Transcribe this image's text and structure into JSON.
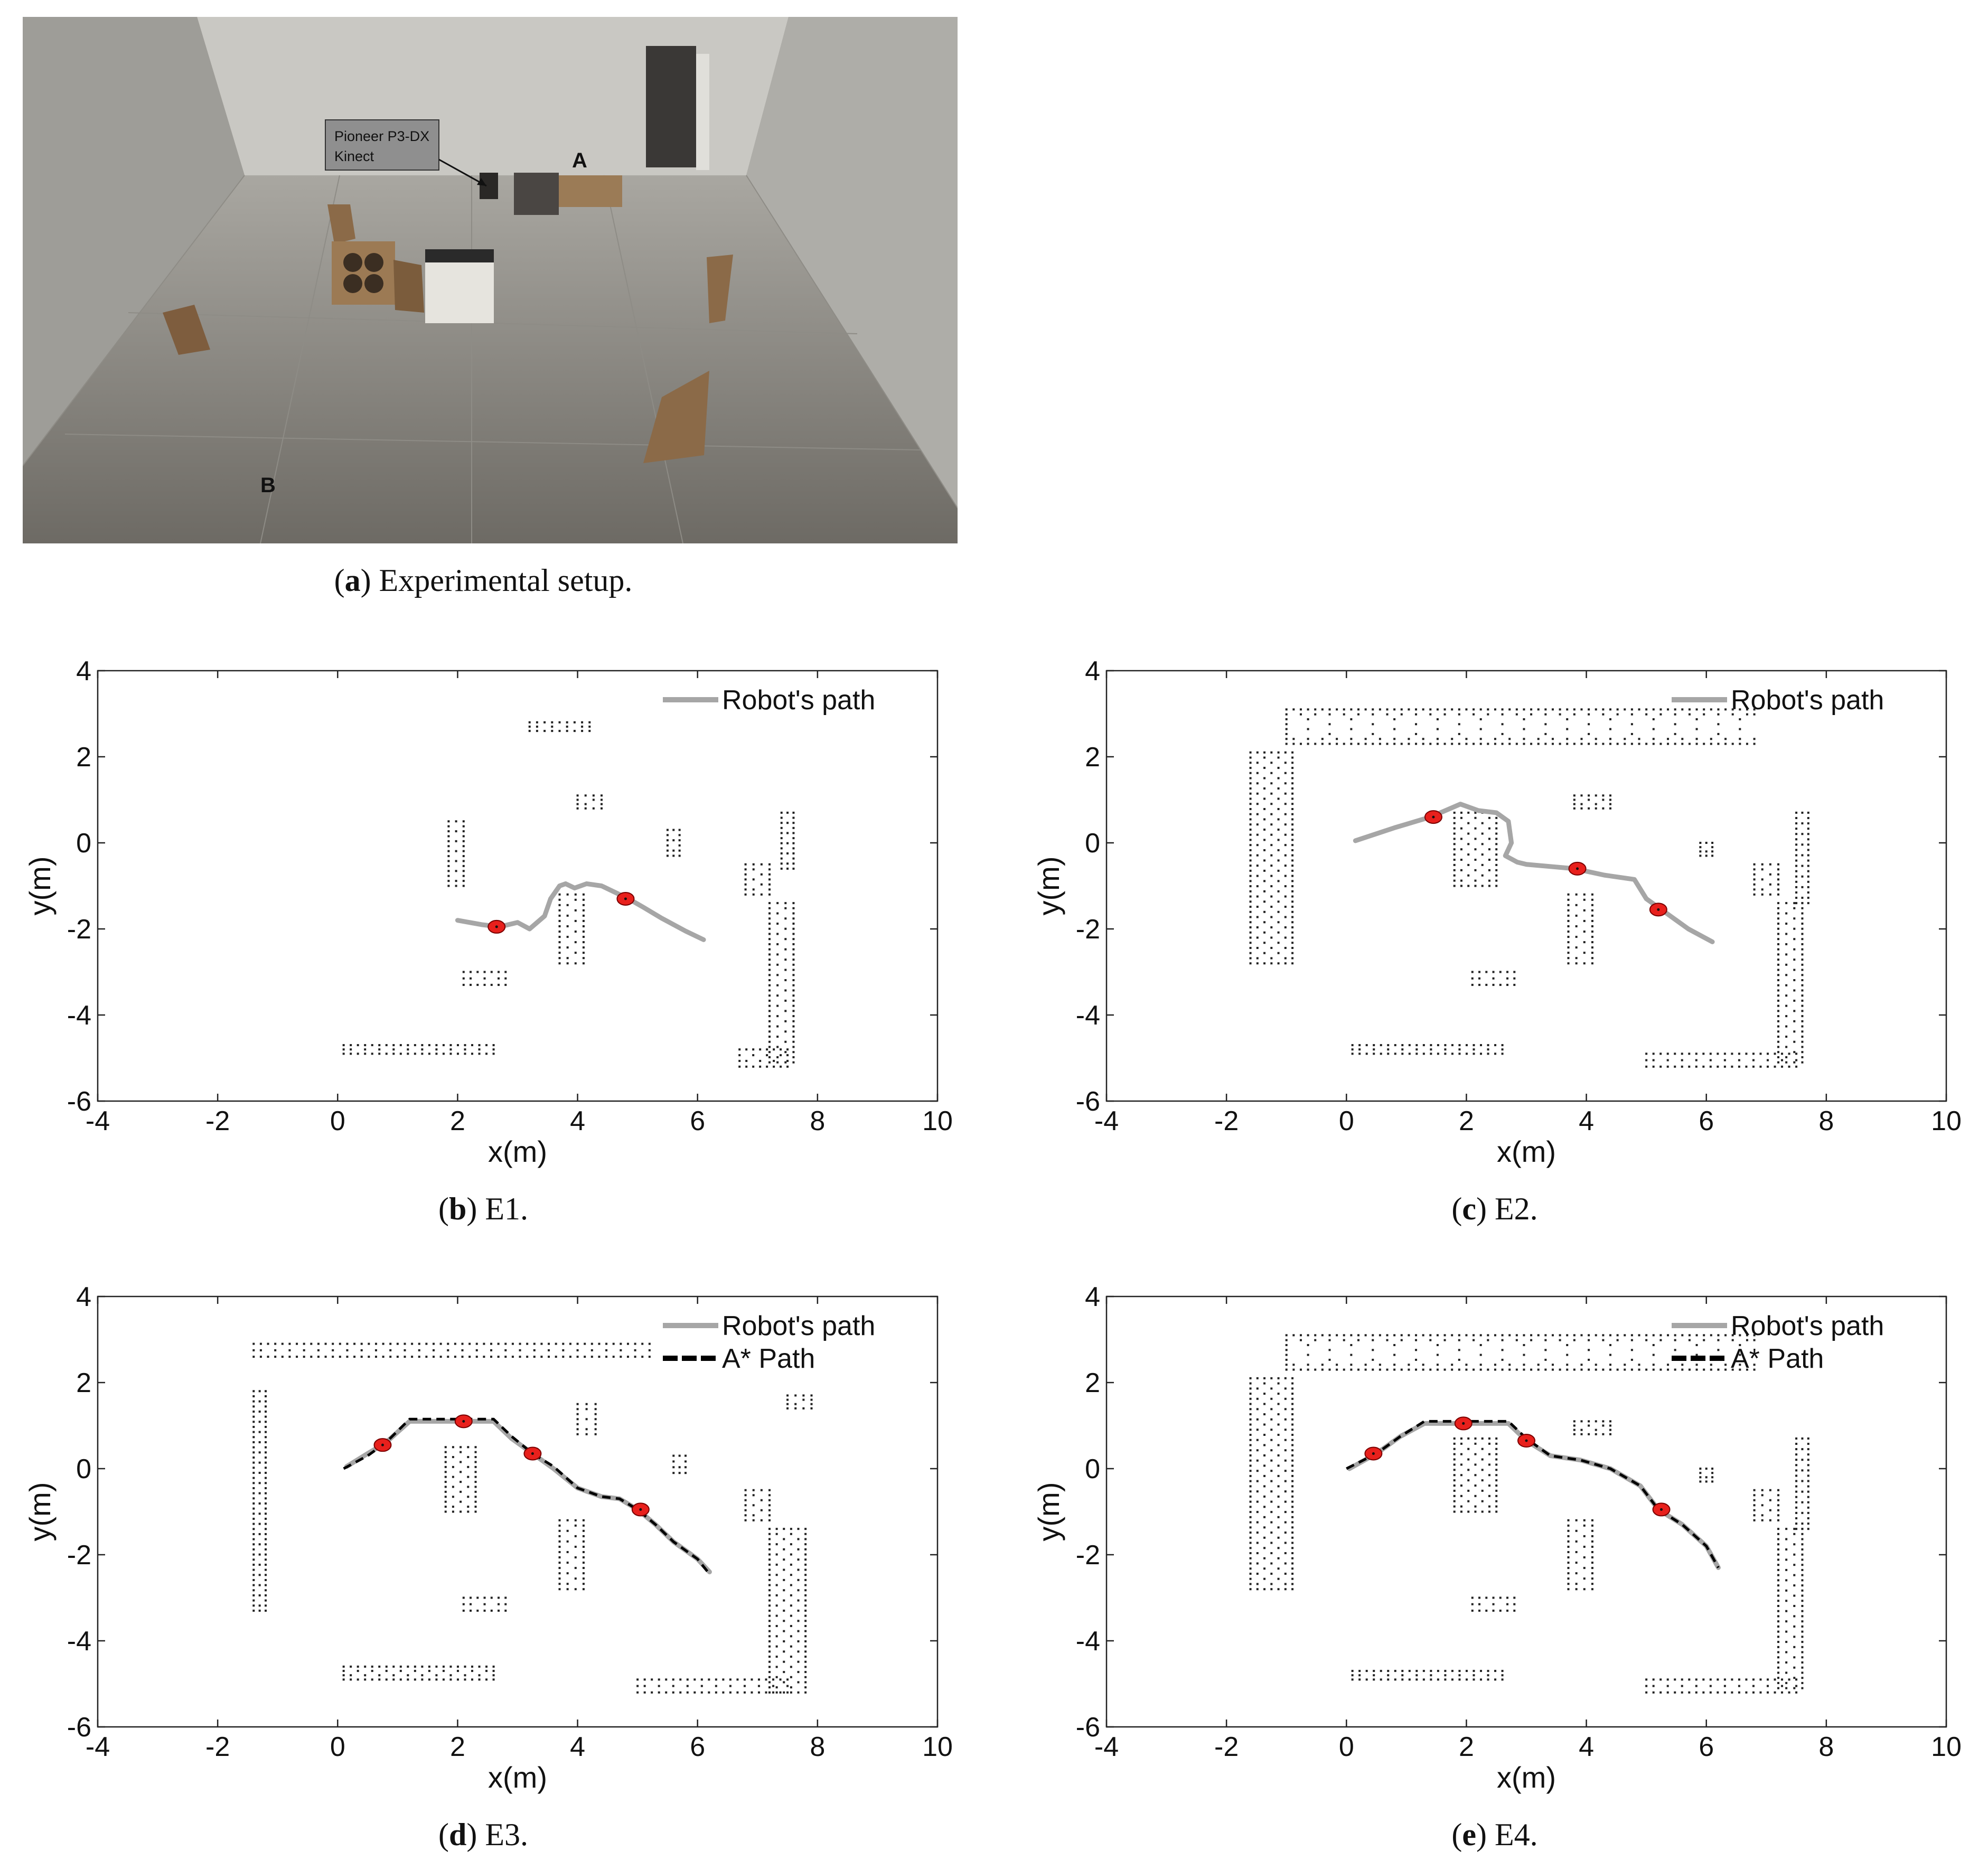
{
  "photo": {
    "label_line1": "Pioneer P3-DX",
    "label_line2": "Kinect",
    "point_a": "A",
    "point_b": "B"
  },
  "captions": [
    {
      "letter": "a",
      "text": "Experimental setup."
    },
    {
      "letter": "b",
      "text": "E1."
    },
    {
      "letter": "c",
      "text": "E2."
    },
    {
      "letter": "d",
      "text": "E3."
    },
    {
      "letter": "e",
      "text": "E4."
    }
  ],
  "colors": {
    "robot_path": "#a6a6a6",
    "astar_path": "#000000",
    "robot_marker": "#e8201c",
    "obstacle_dots": "#222222"
  },
  "chart_data": [
    {
      "id": "E1",
      "type": "line",
      "xlabel": "x(m)",
      "ylabel": "y(m)",
      "xlim": [
        -4,
        10
      ],
      "ylim": [
        -6,
        4
      ],
      "xticks": [
        -4,
        -2,
        0,
        2,
        4,
        6,
        8,
        10
      ],
      "yticks": [
        -6,
        -4,
        -2,
        0,
        2,
        4
      ],
      "legend": [
        "Robot's path"
      ],
      "legend_position": "top-right",
      "grid": false,
      "series": [
        {
          "name": "Robot's path",
          "style": "solid",
          "x": [
            2.0,
            2.4,
            2.7,
            3.0,
            3.2,
            3.45,
            3.55,
            3.7,
            3.8,
            3.95,
            4.15,
            4.4,
            4.7,
            4.85,
            5.1,
            5.4,
            5.8,
            6.1
          ],
          "y": [
            -1.8,
            -1.9,
            -1.95,
            -1.85,
            -2.0,
            -1.7,
            -1.3,
            -1.0,
            -0.95,
            -1.05,
            -0.95,
            -1.0,
            -1.2,
            -1.3,
            -1.5,
            -1.75,
            -2.05,
            -2.25
          ]
        }
      ],
      "robot_positions": [
        {
          "x": 2.65,
          "y": -1.95
        },
        {
          "x": 4.8,
          "y": -1.3
        }
      ],
      "obstacles": [
        {
          "x": [
            3.2,
            4.2
          ],
          "y": [
            2.6,
            2.8
          ]
        },
        {
          "x": [
            4.0,
            4.4
          ],
          "y": [
            0.8,
            1.1
          ]
        },
        {
          "x": [
            1.85,
            2.1
          ],
          "y": [
            -1.0,
            0.5
          ]
        },
        {
          "x": [
            3.7,
            4.1
          ],
          "y": [
            -2.8,
            -1.2
          ]
        },
        {
          "x": [
            5.5,
            5.7
          ],
          "y": [
            -0.3,
            0.3
          ]
        },
        {
          "x": [
            6.8,
            7.2
          ],
          "y": [
            -1.2,
            -0.5
          ]
        },
        {
          "x": [
            7.4,
            7.6
          ],
          "y": [
            -0.6,
            0.7
          ]
        },
        {
          "x": [
            7.2,
            7.6
          ],
          "y": [
            -5.1,
            -1.4
          ]
        },
        {
          "x": [
            2.1,
            2.8
          ],
          "y": [
            -3.3,
            -3.0
          ]
        },
        {
          "x": [
            0.1,
            2.6
          ],
          "y": [
            -4.9,
            -4.7
          ]
        },
        {
          "x": [
            6.7,
            7.5
          ],
          "y": [
            -5.2,
            -4.8
          ]
        }
      ]
    },
    {
      "id": "E2",
      "type": "line",
      "xlabel": "x(m)",
      "ylabel": "y(m)",
      "xlim": [
        -4,
        10
      ],
      "ylim": [
        -6,
        4
      ],
      "xticks": [
        -4,
        -2,
        0,
        2,
        4,
        6,
        8,
        10
      ],
      "yticks": [
        -6,
        -4,
        -2,
        0,
        2,
        4
      ],
      "legend": [
        "Robot's path"
      ],
      "legend_position": "top-right",
      "grid": false,
      "series": [
        {
          "name": "Robot's path",
          "style": "solid",
          "x": [
            0.15,
            0.8,
            1.4,
            1.9,
            2.2,
            2.5,
            2.7,
            2.75,
            2.65,
            2.85,
            3.0,
            3.4,
            3.8,
            4.3,
            4.8,
            5.0,
            5.3,
            5.7,
            6.1
          ],
          "y": [
            0.05,
            0.35,
            0.6,
            0.9,
            0.75,
            0.7,
            0.5,
            0.0,
            -0.3,
            -0.45,
            -0.5,
            -0.55,
            -0.6,
            -0.75,
            -0.85,
            -1.3,
            -1.6,
            -2.0,
            -2.3
          ]
        }
      ],
      "robot_positions": [
        {
          "x": 1.45,
          "y": 0.6
        },
        {
          "x": 3.85,
          "y": -0.6
        },
        {
          "x": 5.2,
          "y": -1.55
        }
      ],
      "obstacles": [
        {
          "x": [
            -1.0,
            6.8
          ],
          "y": [
            2.3,
            3.1
          ]
        },
        {
          "x": [
            -1.6,
            -0.9
          ],
          "y": [
            -2.8,
            2.1
          ]
        },
        {
          "x": [
            1.8,
            2.5
          ],
          "y": [
            -1.0,
            0.7
          ]
        },
        {
          "x": [
            3.7,
            4.1
          ],
          "y": [
            -2.8,
            -1.2
          ]
        },
        {
          "x": [
            3.8,
            4.4
          ],
          "y": [
            0.8,
            1.1
          ]
        },
        {
          "x": [
            5.9,
            6.1
          ],
          "y": [
            -0.3,
            0.0
          ]
        },
        {
          "x": [
            6.8,
            7.2
          ],
          "y": [
            -1.2,
            -0.5
          ]
        },
        {
          "x": [
            7.5,
            7.7
          ],
          "y": [
            -1.4,
            0.7
          ]
        },
        {
          "x": [
            7.2,
            7.6
          ],
          "y": [
            -5.1,
            -1.4
          ]
        },
        {
          "x": [
            2.1,
            2.8
          ],
          "y": [
            -3.3,
            -3.0
          ]
        },
        {
          "x": [
            0.1,
            2.6
          ],
          "y": [
            -4.9,
            -4.7
          ]
        },
        {
          "x": [
            5.0,
            7.5
          ],
          "y": [
            -5.2,
            -4.9
          ]
        }
      ]
    },
    {
      "id": "E3",
      "type": "line",
      "xlabel": "x(m)",
      "ylabel": "y(m)",
      "xlim": [
        -4,
        10
      ],
      "ylim": [
        -6,
        4
      ],
      "xticks": [
        -4,
        -2,
        0,
        2,
        4,
        6,
        8,
        10
      ],
      "yticks": [
        -6,
        -4,
        -2,
        0,
        2,
        4
      ],
      "legend": [
        "Robot's path",
        "A* Path"
      ],
      "legend_position": "top-right",
      "grid": false,
      "series": [
        {
          "name": "Robot's path",
          "style": "solid",
          "x": [
            0.15,
            0.5,
            0.8,
            1.2,
            1.6,
            2.1,
            2.6,
            2.9,
            3.25,
            3.6,
            4.0,
            4.4,
            4.7,
            5.0,
            5.3,
            5.6,
            6.0,
            6.2
          ],
          "y": [
            0.05,
            0.35,
            0.6,
            1.1,
            1.1,
            1.1,
            1.1,
            0.7,
            0.35,
            0.0,
            -0.45,
            -0.65,
            -0.7,
            -0.95,
            -1.3,
            -1.7,
            -2.1,
            -2.4
          ]
        },
        {
          "name": "A* Path",
          "style": "dashed",
          "x": [
            0.1,
            0.5,
            0.8,
            1.2,
            1.6,
            2.1,
            2.6,
            2.9,
            3.25,
            3.6,
            4.0,
            4.4,
            4.7,
            5.0,
            5.3,
            5.6,
            6.0,
            6.2
          ],
          "y": [
            0.0,
            0.3,
            0.6,
            1.15,
            1.15,
            1.15,
            1.15,
            0.75,
            0.35,
            0.05,
            -0.45,
            -0.65,
            -0.7,
            -0.95,
            -1.3,
            -1.7,
            -2.1,
            -2.45
          ]
        }
      ],
      "robot_positions": [
        {
          "x": 0.75,
          "y": 0.55
        },
        {
          "x": 2.1,
          "y": 1.1
        },
        {
          "x": 3.25,
          "y": 0.35
        },
        {
          "x": 5.05,
          "y": -0.95
        }
      ],
      "obstacles": [
        {
          "x": [
            -1.4,
            5.2
          ],
          "y": [
            2.6,
            2.9
          ]
        },
        {
          "x": [
            -1.4,
            -1.2
          ],
          "y": [
            -3.3,
            1.8
          ]
        },
        {
          "x": [
            1.8,
            2.3
          ],
          "y": [
            -1.0,
            0.5
          ]
        },
        {
          "x": [
            3.7,
            4.1
          ],
          "y": [
            -2.8,
            -1.2
          ]
        },
        {
          "x": [
            4.0,
            4.3
          ],
          "y": [
            0.8,
            1.5
          ]
        },
        {
          "x": [
            5.6,
            5.8
          ],
          "y": [
            -0.1,
            0.3
          ]
        },
        {
          "x": [
            6.8,
            7.2
          ],
          "y": [
            -1.2,
            -0.5
          ]
        },
        {
          "x": [
            7.5,
            7.9
          ],
          "y": [
            1.4,
            1.7
          ]
        },
        {
          "x": [
            7.2,
            7.8
          ],
          "y": [
            -5.2,
            -1.4
          ]
        },
        {
          "x": [
            2.1,
            2.8
          ],
          "y": [
            -3.3,
            -3.0
          ]
        },
        {
          "x": [
            0.1,
            2.6
          ],
          "y": [
            -4.9,
            -4.6
          ]
        },
        {
          "x": [
            5.0,
            7.5
          ],
          "y": [
            -5.2,
            -4.9
          ]
        }
      ]
    },
    {
      "id": "E4",
      "type": "line",
      "xlabel": "x(m)",
      "ylabel": "y(m)",
      "xlim": [
        -4,
        10
      ],
      "ylim": [
        -6,
        4
      ],
      "xticks": [
        -4,
        -2,
        0,
        2,
        4,
        6,
        8,
        10
      ],
      "yticks": [
        -6,
        -4,
        -2,
        0,
        2,
        4
      ],
      "legend": [
        "Robot's path",
        "A* Path"
      ],
      "legend_position": "top-right",
      "grid": false,
      "series": [
        {
          "name": "Robot's path",
          "style": "solid",
          "x": [
            0.05,
            0.5,
            0.9,
            1.3,
            1.9,
            2.4,
            2.7,
            3.0,
            3.4,
            3.9,
            4.4,
            4.9,
            5.2,
            5.6,
            6.0,
            6.2
          ],
          "y": [
            0.0,
            0.35,
            0.75,
            1.05,
            1.05,
            1.05,
            1.05,
            0.65,
            0.3,
            0.2,
            0.0,
            -0.4,
            -0.95,
            -1.3,
            -1.8,
            -2.3
          ]
        },
        {
          "name": "A* Path",
          "style": "dashed",
          "x": [
            0.0,
            0.5,
            0.9,
            1.3,
            1.9,
            2.4,
            2.7,
            3.0,
            3.4,
            3.9,
            4.4,
            4.9,
            5.2,
            5.6,
            6.0,
            6.2
          ],
          "y": [
            0.0,
            0.35,
            0.75,
            1.1,
            1.1,
            1.1,
            1.1,
            0.7,
            0.3,
            0.2,
            0.0,
            -0.4,
            -0.95,
            -1.3,
            -1.8,
            -2.3
          ]
        }
      ],
      "robot_positions": [
        {
          "x": 0.45,
          "y": 0.35
        },
        {
          "x": 1.95,
          "y": 1.05
        },
        {
          "x": 3.0,
          "y": 0.65
        },
        {
          "x": 5.25,
          "y": -0.95
        }
      ],
      "obstacles": [
        {
          "x": [
            -1.0,
            6.8
          ],
          "y": [
            2.3,
            3.1
          ]
        },
        {
          "x": [
            -1.6,
            -0.9
          ],
          "y": [
            -2.8,
            2.1
          ]
        },
        {
          "x": [
            1.8,
            2.5
          ],
          "y": [
            -1.0,
            0.7
          ]
        },
        {
          "x": [
            3.7,
            4.1
          ],
          "y": [
            -2.8,
            -1.2
          ]
        },
        {
          "x": [
            3.8,
            4.4
          ],
          "y": [
            0.8,
            1.1
          ]
        },
        {
          "x": [
            5.9,
            6.1
          ],
          "y": [
            -0.3,
            0.0
          ]
        },
        {
          "x": [
            6.8,
            7.2
          ],
          "y": [
            -1.2,
            -0.5
          ]
        },
        {
          "x": [
            7.5,
            7.7
          ],
          "y": [
            -1.4,
            0.7
          ]
        },
        {
          "x": [
            7.2,
            7.6
          ],
          "y": [
            -5.1,
            -1.4
          ]
        },
        {
          "x": [
            2.1,
            2.8
          ],
          "y": [
            -3.3,
            -3.0
          ]
        },
        {
          "x": [
            0.1,
            2.6
          ],
          "y": [
            -4.9,
            -4.7
          ]
        },
        {
          "x": [
            5.0,
            7.5
          ],
          "y": [
            -5.2,
            -4.9
          ]
        }
      ]
    }
  ]
}
